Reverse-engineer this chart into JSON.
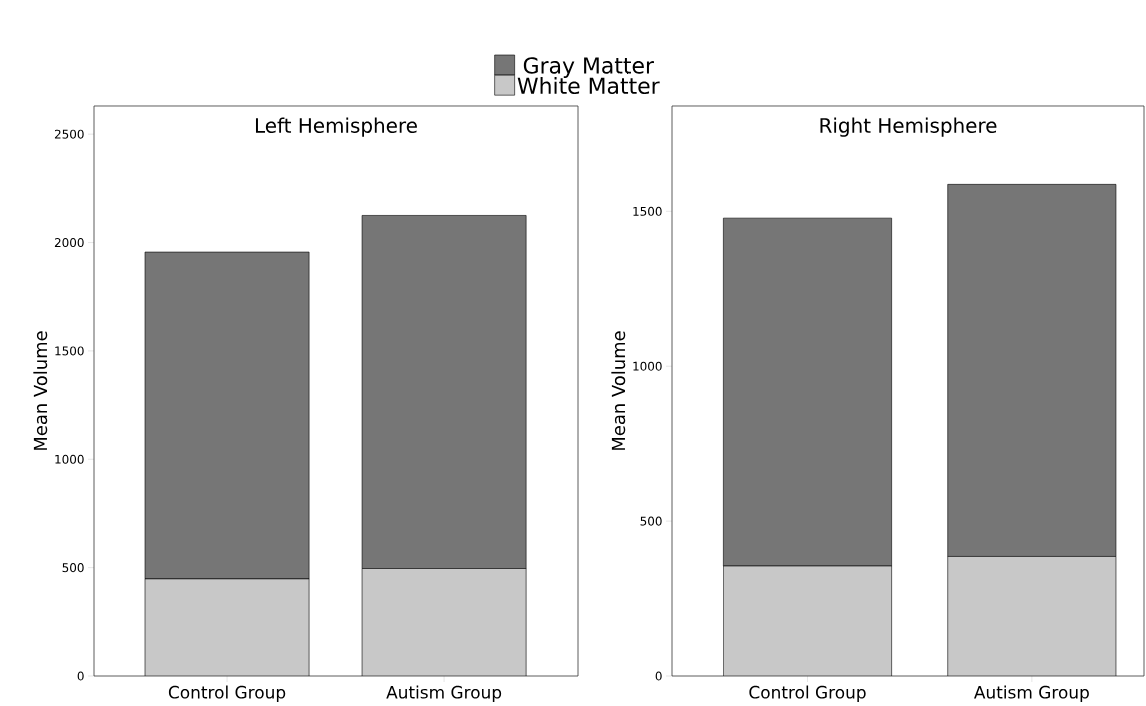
{
  "chart_data": [
    {
      "type": "bar",
      "title": "Left Hemisphere",
      "ylabel": "Mean Volume",
      "categories": [
        "Control Group",
        "Autism Group"
      ],
      "stacked": true,
      "legend": "top",
      "series": [
        {
          "name": "White Matter",
          "color": "#c8c8c8",
          "values": [
            448,
            496
          ]
        },
        {
          "name": "Gray Matter",
          "color": "#767676",
          "values": [
            1508,
            1629
          ]
        }
      ],
      "ylim": [
        0,
        2630
      ],
      "yticks": [
        0,
        500,
        1000,
        1500,
        2000,
        2500
      ]
    },
    {
      "type": "bar",
      "title": "Right Hemisphere",
      "ylabel": "Mean Volume",
      "categories": [
        "Control Group",
        "Autism Group"
      ],
      "stacked": true,
      "series": [
        {
          "color": "#c8c8c8",
          "values": [
            355,
            386
          ]
        },
        {
          "color": "#767676",
          "values": [
            1123,
            1201
          ]
        }
      ],
      "ylim": [
        0,
        1840
      ],
      "yticks": [
        0,
        500,
        1000,
        1500
      ]
    }
  ]
}
